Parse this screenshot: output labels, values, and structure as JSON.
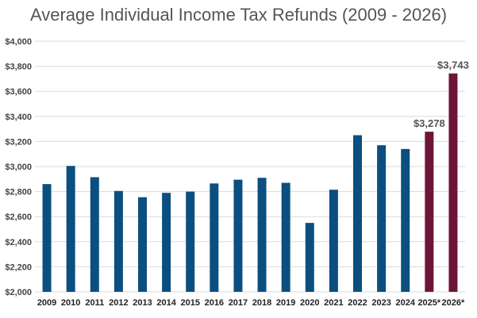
{
  "chart_data": {
    "type": "bar",
    "title": "Average Individual Income Tax Refunds (2009 - 2026)",
    "xlabel": "",
    "ylabel": "",
    "ylim": [
      2000,
      4000
    ],
    "yticks": [
      "$2,000",
      "$2,200",
      "$2,400",
      "$2,600",
      "$2,800",
      "$3,000",
      "$3,200",
      "$3,400",
      "$3,600",
      "$3,800",
      "$4,000"
    ],
    "ytick_values": [
      2000,
      2200,
      2400,
      2600,
      2800,
      3000,
      3200,
      3400,
      3600,
      3800,
      4000
    ],
    "grid": true,
    "categories": [
      "2009",
      "2010",
      "2011",
      "2012",
      "2013",
      "2014",
      "2015",
      "2016",
      "2017",
      "2018",
      "2019",
      "2020",
      "2021",
      "2022",
      "2023",
      "2024",
      "2025*",
      "2026*"
    ],
    "values": [
      2860,
      3005,
      2915,
      2805,
      2755,
      2790,
      2800,
      2865,
      2895,
      2910,
      2870,
      2550,
      2815,
      3250,
      3170,
      3140,
      3278,
      3743
    ],
    "data_labels": [
      "",
      "",
      "",
      "",
      "",
      "",
      "",
      "",
      "",
      "",
      "",
      "",
      "",
      "",
      "",
      "",
      "$3,278",
      "$3,743"
    ],
    "bar_colors": [
      "#0a4f7f",
      "#0a4f7f",
      "#0a4f7f",
      "#0a4f7f",
      "#0a4f7f",
      "#0a4f7f",
      "#0a4f7f",
      "#0a4f7f",
      "#0a4f7f",
      "#0a4f7f",
      "#0a4f7f",
      "#0a4f7f",
      "#0a4f7f",
      "#0a4f7f",
      "#0a4f7f",
      "#0a4f7f",
      "#6e1537",
      "#6e1537"
    ]
  },
  "colors": {
    "actual": "#0a4f7f",
    "projected": "#6e1537",
    "grid": "#d9d9d9",
    "title": "#555555"
  }
}
